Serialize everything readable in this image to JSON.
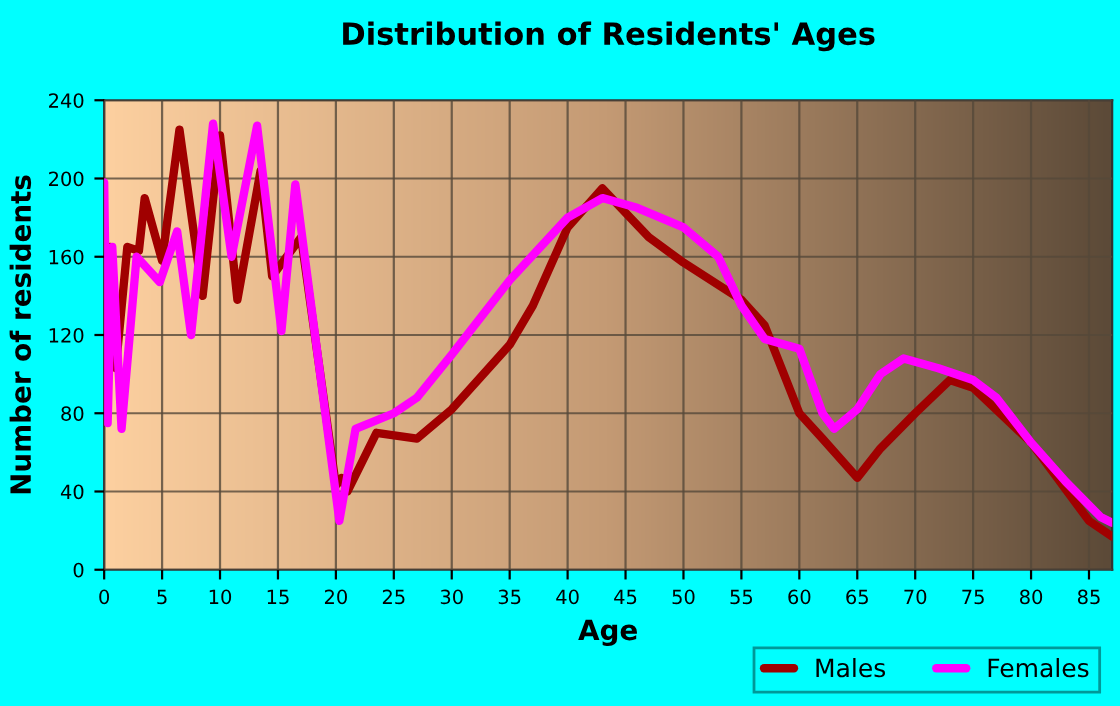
{
  "chart_data": {
    "type": "line",
    "title": "Distribution of Residents' Ages",
    "xlabel": "Age",
    "ylabel": "Number of residents",
    "xlim": [
      0,
      87
    ],
    "xticks": [
      0,
      5,
      10,
      15,
      20,
      25,
      30,
      35,
      40,
      45,
      50,
      55,
      60,
      65,
      70,
      75,
      80,
      85
    ],
    "ylim": [
      0,
      240
    ],
    "yticks": [
      0,
      40,
      80,
      120,
      160,
      200,
      240
    ],
    "grid": true,
    "legend": "bottom right",
    "line_style": "solid",
    "marker": "none",
    "series": [
      {
        "name": "Males",
        "color": "#a00000",
        "x": [
          0,
          0.5,
          1,
          2,
          3,
          3.5,
          5,
          6.5,
          8.5,
          10,
          11.5,
          13.5,
          14.5,
          17,
          20,
          20.5,
          21,
          23.5,
          27,
          30,
          35,
          37,
          40,
          43,
          47,
          50,
          55,
          57,
          60,
          62,
          65,
          67,
          70,
          73,
          75,
          80,
          85,
          87
        ],
        "values": [
          82,
          165,
          103,
          165,
          163,
          190,
          158,
          225,
          140,
          222,
          138,
          204,
          150,
          170,
          43,
          47,
          40,
          70,
          67,
          82,
          115,
          135,
          175,
          195,
          170,
          157,
          138,
          125,
          80,
          67,
          47,
          62,
          80,
          97,
          93,
          65,
          25,
          17
        ]
      },
      {
        "name": "Females",
        "color": "#ff00ff",
        "x": [
          0,
          0.3,
          0.7,
          1.5,
          2.8,
          4.8,
          6.3,
          7.5,
          9.4,
          11,
          13.2,
          15.3,
          16.5,
          20.3,
          21.7,
          25,
          27,
          30,
          35,
          40,
          43,
          46,
          50,
          53,
          55,
          57,
          60,
          62,
          63,
          65,
          67,
          69,
          72,
          75,
          77,
          80,
          83,
          86,
          87
        ],
        "values": [
          198,
          75,
          165,
          72,
          160,
          147,
          173,
          120,
          228,
          160,
          227,
          122,
          197,
          25,
          72,
          80,
          88,
          110,
          148,
          180,
          190,
          185,
          175,
          160,
          135,
          118,
          113,
          80,
          72,
          82,
          100,
          108,
          103,
          97,
          88,
          65,
          45,
          27,
          24
        ]
      }
    ]
  }
}
